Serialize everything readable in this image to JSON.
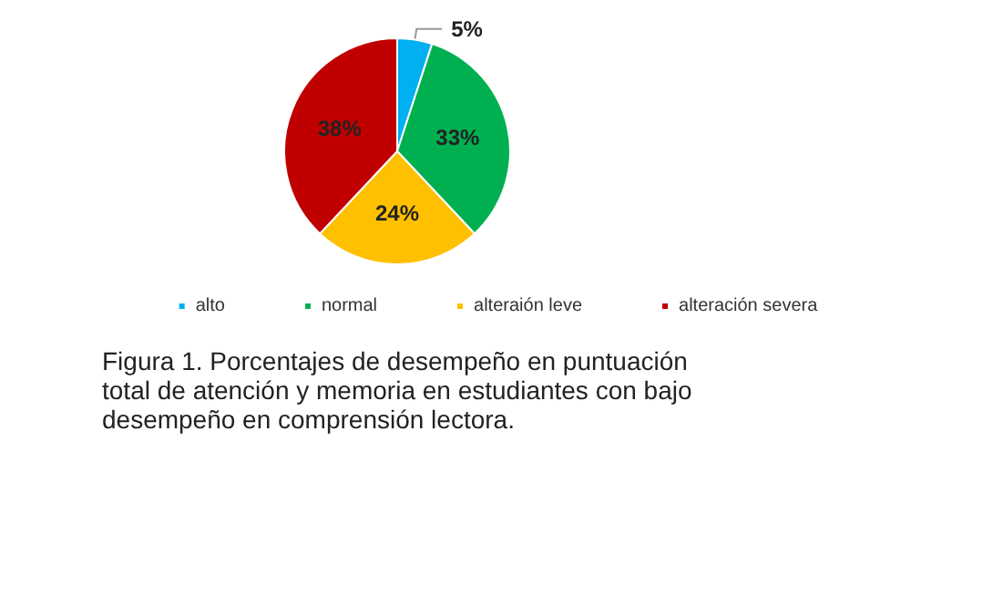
{
  "chart_data": {
    "type": "pie",
    "categories": [
      "alto",
      "normal",
      "alteraión leve",
      "alteración severa"
    ],
    "values": [
      5,
      33,
      24,
      38
    ],
    "colors": [
      "#00b0f0",
      "#00b050",
      "#ffc000",
      "#c00000"
    ],
    "value_labels": [
      "5%",
      "33%",
      "24%",
      "38%"
    ],
    "legend": "bottom",
    "annotations": [
      "Figura 1. Porcentajes de desempeño en puntuación total de atención y memoria en estudiantes con bajo desempeño en comprensión lectora."
    ]
  }
}
